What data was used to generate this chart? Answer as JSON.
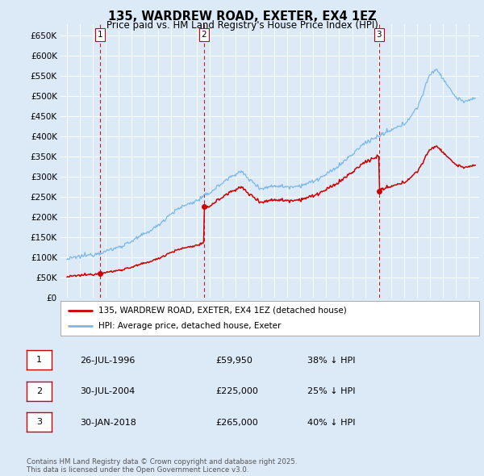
{
  "title": "135, WARDREW ROAD, EXETER, EX4 1EZ",
  "subtitle": "Price paid vs. HM Land Registry's House Price Index (HPI)",
  "ylim": [
    0,
    680000
  ],
  "yticks": [
    0,
    50000,
    100000,
    150000,
    200000,
    250000,
    300000,
    350000,
    400000,
    450000,
    500000,
    550000,
    600000,
    650000
  ],
  "xlim_start": 1993.5,
  "xlim_end": 2025.8,
  "background_color": "#dce9f7",
  "grid_color": "#ffffff",
  "hpi_color": "#7ab8e8",
  "price_color": "#cc0000",
  "vline_color": "#cc0000",
  "transactions": [
    {
      "date_year": 1996.57,
      "price": 59950,
      "label": "1"
    },
    {
      "date_year": 2004.58,
      "price": 225000,
      "label": "2"
    },
    {
      "date_year": 2018.08,
      "price": 265000,
      "label": "3"
    }
  ],
  "transaction_table": [
    {
      "num": "1",
      "date": "26-JUL-1996",
      "price": "£59,950",
      "hpi_pct": "38% ↓ HPI"
    },
    {
      "num": "2",
      "date": "30-JUL-2004",
      "price": "£225,000",
      "hpi_pct": "25% ↓ HPI"
    },
    {
      "num": "3",
      "date": "30-JAN-2018",
      "price": "£265,000",
      "hpi_pct": "40% ↓ HPI"
    }
  ],
  "legend_label_red": "135, WARDREW ROAD, EXETER, EX4 1EZ (detached house)",
  "legend_label_blue": "HPI: Average price, detached house, Exeter",
  "footer": "Contains HM Land Registry data © Crown copyright and database right 2025.\nThis data is licensed under the Open Government Licence v3.0."
}
